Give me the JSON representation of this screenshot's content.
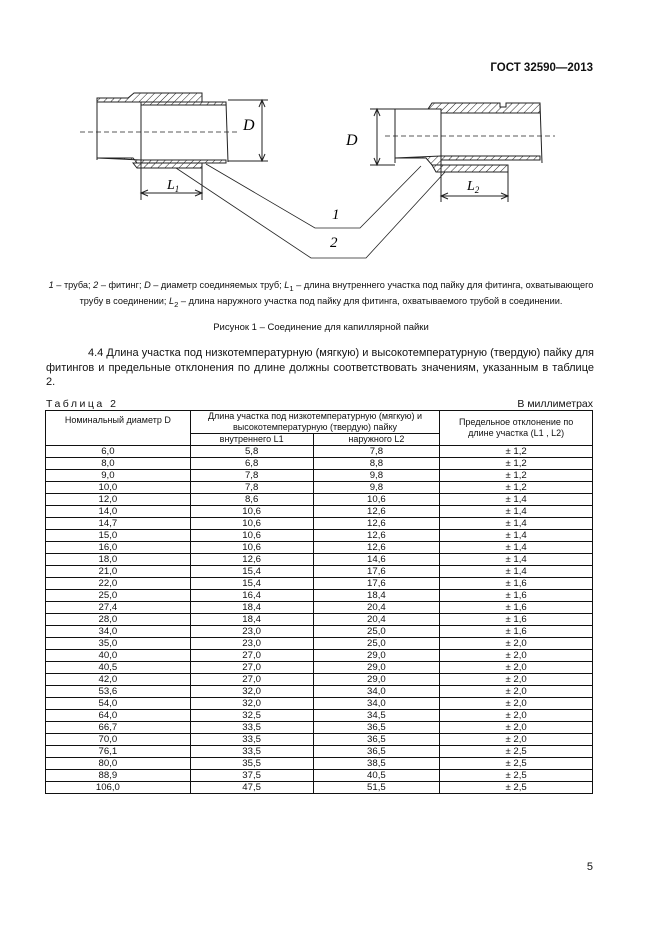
{
  "header": {
    "doc_id": "ГОСТ 32590—2013"
  },
  "figure": {
    "labels": {
      "D_left": "D",
      "D_right": "D",
      "L1": "L",
      "L1_sub": "1",
      "L2": "L",
      "L2_sub": "2",
      "callout1": "1",
      "callout2": "2"
    },
    "legend": {
      "n1": "1",
      "t1": " – труба; ",
      "n2": "2",
      "t2": " – фитинг; ",
      "d": "D",
      "t3": " – диаметр соединяемых труб; ",
      "l1": "L",
      "l1s": "1",
      "t4": " – длина внутреннего участка под пайку для фитинга, охватывающего трубу в соединении; ",
      "l2": "L",
      "l2s": "2",
      "t5": " – длина наружного участка под пайку для фитинга, охватываемого трубой в соединении."
    },
    "caption": "Рисунок 1 – Соединение для капиллярной пайки"
  },
  "paragraph": "4.4 Длина участка под низкотемпературную (мягкую) и высокотемпературную (твердую) пайку для фитингов и предельные отклонения по длине должны соответствовать значениям, указанным в таблице 2.",
  "table": {
    "label": "Таблица 2",
    "units": "В миллиметрах",
    "headers": {
      "col1": "Номинальный диаметр D",
      "col2_group": "Длина участка под низкотемпературную (мягкую) и высокотемпературную (твердую) пайку",
      "col2a": "внутреннего L1",
      "col2b": "наружного L2",
      "col3": "Предельное отклонение по длине участка (L1 , L2)"
    },
    "rows": [
      [
        "6,0",
        "5,8",
        "7,8",
        "± 1,2"
      ],
      [
        "8,0",
        "6,8",
        "8,8",
        "± 1,2"
      ],
      [
        "9,0",
        "7,8",
        "9,8",
        "± 1,2"
      ],
      [
        "10,0",
        "7,8",
        "9,8",
        "± 1,2"
      ],
      [
        "12,0",
        "8,6",
        "10,6",
        "± 1,4"
      ],
      [
        "14,0",
        "10,6",
        "12,6",
        "± 1,4"
      ],
      [
        "14,7",
        "10,6",
        "12,6",
        "± 1,4"
      ],
      [
        "15,0",
        "10,6",
        "12,6",
        "± 1,4"
      ],
      [
        "16,0",
        "10,6",
        "12,6",
        "± 1,4"
      ],
      [
        "18,0",
        "12,6",
        "14,6",
        "± 1,4"
      ],
      [
        "21,0",
        "15,4",
        "17,6",
        "± 1,4"
      ],
      [
        "22,0",
        "15,4",
        "17,6",
        "± 1,6"
      ],
      [
        "25,0",
        "16,4",
        "18,4",
        "± 1,6"
      ],
      [
        "27,4",
        "18,4",
        "20,4",
        "± 1,6"
      ],
      [
        "28,0",
        "18,4",
        "20,4",
        "± 1,6"
      ],
      [
        "34,0",
        "23,0",
        "25,0",
        "± 1,6"
      ],
      [
        "35,0",
        "23,0",
        "25,0",
        "± 2,0"
      ],
      [
        "40,0",
        "27,0",
        "29,0",
        "± 2,0"
      ],
      [
        "40,5",
        "27,0",
        "29,0",
        "± 2,0"
      ],
      [
        "42,0",
        "27,0",
        "29,0",
        "± 2,0"
      ],
      [
        "53,6",
        "32,0",
        "34,0",
        "± 2,0"
      ],
      [
        "54,0",
        "32,0",
        "34,0",
        "± 2,0"
      ],
      [
        "64,0",
        "32,5",
        "34,5",
        "± 2,0"
      ],
      [
        "66,7",
        "33,5",
        "36,5",
        "± 2,0"
      ],
      [
        "70,0",
        "33,5",
        "36,5",
        "± 2,0"
      ],
      [
        "76,1",
        "33,5",
        "36,5",
        "± 2,5"
      ],
      [
        "80,0",
        "35,5",
        "38,5",
        "± 2,5"
      ],
      [
        "88,9",
        "37,5",
        "40,5",
        "± 2,5"
      ],
      [
        "106,0",
        "47,5",
        "51,5",
        "± 2,5"
      ]
    ]
  },
  "footer": {
    "page_number": "5"
  }
}
